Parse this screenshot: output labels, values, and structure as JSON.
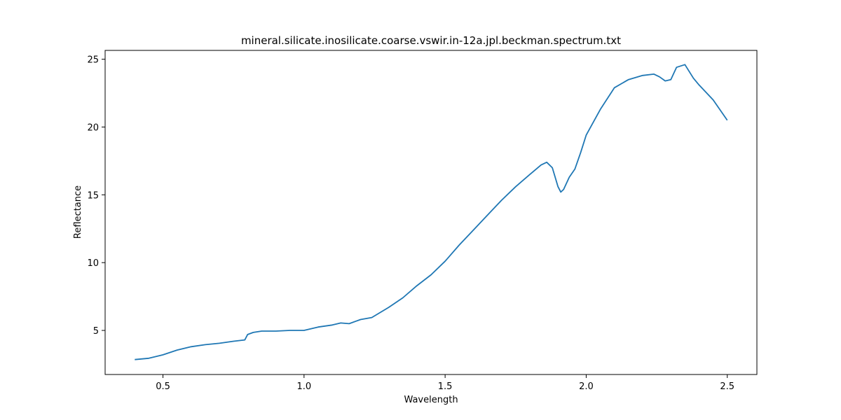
{
  "chart_data": {
    "type": "line",
    "title": "mineral.silicate.inosilicate.coarse.vswir.in-12a.jpl.beckman.spectrum.txt",
    "xlabel": "Wavelength",
    "ylabel": "Reflectance",
    "xlim": [
      0.295,
      2.605
    ],
    "ylim": [
      1.75,
      25.65
    ],
    "xticks": [
      0.5,
      1.0,
      1.5,
      2.0,
      2.5
    ],
    "xtick_labels": [
      "0.5",
      "1.0",
      "1.5",
      "2.0",
      "2.5"
    ],
    "yticks": [
      5,
      10,
      15,
      20,
      25
    ],
    "ytick_labels": [
      "5",
      "10",
      "15",
      "20",
      "25"
    ],
    "grid": false,
    "legend": "none",
    "series": [
      {
        "color": "#1f77b4",
        "x": [
          0.4,
          0.45,
          0.5,
          0.55,
          0.6,
          0.65,
          0.7,
          0.75,
          0.79,
          0.8,
          0.82,
          0.85,
          0.9,
          0.95,
          1.0,
          1.05,
          1.1,
          1.13,
          1.16,
          1.2,
          1.24,
          1.3,
          1.35,
          1.4,
          1.45,
          1.5,
          1.55,
          1.6,
          1.65,
          1.7,
          1.75,
          1.8,
          1.84,
          1.86,
          1.88,
          1.9,
          1.91,
          1.92,
          1.94,
          1.96,
          1.98,
          2.0,
          2.05,
          2.1,
          2.15,
          2.2,
          2.24,
          2.26,
          2.28,
          2.3,
          2.32,
          2.35,
          2.38,
          2.4,
          2.45,
          2.5
        ],
        "y": [
          2.85,
          2.95,
          3.2,
          3.55,
          3.8,
          3.95,
          4.05,
          4.2,
          4.3,
          4.7,
          4.85,
          4.95,
          4.95,
          5.0,
          5.0,
          5.25,
          5.4,
          5.55,
          5.5,
          5.8,
          5.95,
          6.7,
          7.4,
          8.3,
          9.1,
          10.1,
          11.3,
          12.4,
          13.5,
          14.6,
          15.6,
          16.5,
          17.2,
          17.4,
          17.0,
          15.6,
          15.2,
          15.4,
          16.3,
          16.9,
          18.1,
          19.4,
          21.3,
          22.9,
          23.5,
          23.8,
          23.9,
          23.7,
          23.4,
          23.5,
          24.4,
          24.6,
          23.6,
          23.1,
          22.0,
          20.5
        ]
      }
    ]
  }
}
